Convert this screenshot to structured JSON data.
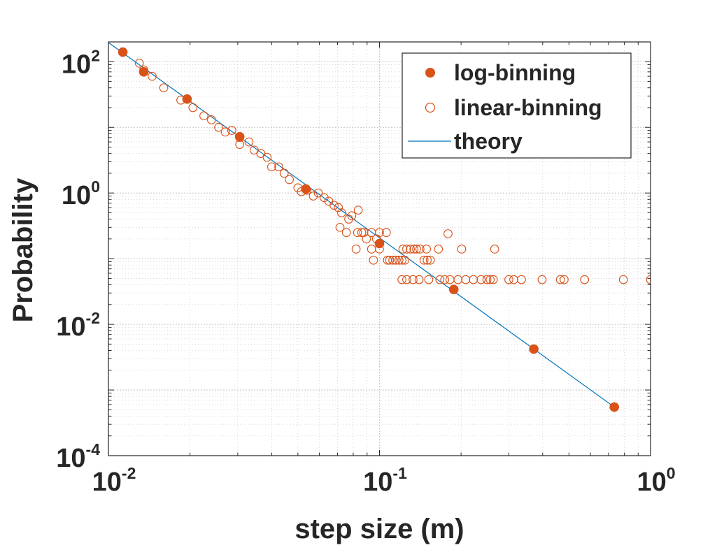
{
  "chart_data": {
    "type": "scatter",
    "xscale": "log",
    "yscale": "log",
    "xlim": [
      0.01,
      1
    ],
    "ylim": [
      0.0001,
      200
    ],
    "grid": true,
    "xlabel": "step size (m)",
    "ylabel": "Probability",
    "legend_position": "top-right",
    "x_ticks": [
      {
        "base": "10",
        "exp": "-2",
        "value": 0.01
      },
      {
        "base": "10",
        "exp": "-1",
        "value": 0.1
      },
      {
        "base": "10",
        "exp": "0",
        "value": 1
      }
    ],
    "y_ticks": [
      {
        "base": "10",
        "exp": "2",
        "value": 100
      },
      {
        "base": "10",
        "exp": "0",
        "value": 1
      },
      {
        "base": "10",
        "exp": "-2",
        "value": 0.01
      },
      {
        "base": "10",
        "exp": "-4",
        "value": 0.0001
      }
    ],
    "colors": {
      "markers": "#D95319",
      "theory": "#0072BD",
      "grid": "#b0b0b0",
      "axes": "#262626"
    },
    "series": [
      {
        "name": "log-binning",
        "style": "filled-circle",
        "points": [
          [
            0.0113,
            140
          ],
          [
            0.0135,
            70
          ],
          [
            0.0195,
            27
          ],
          [
            0.0305,
            7.2
          ],
          [
            0.0535,
            1.15
          ],
          [
            0.1,
            0.17
          ],
          [
            0.188,
            0.034
          ],
          [
            0.371,
            0.0042
          ],
          [
            0.735,
            0.00055
          ]
        ]
      },
      {
        "name": "linear-binning",
        "style": "open-circle",
        "points": [
          [
            0.0113,
            140
          ],
          [
            0.013,
            95
          ],
          [
            0.0135,
            75
          ],
          [
            0.0145,
            60
          ],
          [
            0.016,
            40
          ],
          [
            0.0185,
            26
          ],
          [
            0.0195,
            27
          ],
          [
            0.0205,
            20
          ],
          [
            0.0225,
            15
          ],
          [
            0.024,
            13
          ],
          [
            0.0255,
            10
          ],
          [
            0.027,
            8.5
          ],
          [
            0.0285,
            9
          ],
          [
            0.0305,
            7
          ],
          [
            0.0305,
            5.5
          ],
          [
            0.033,
            6
          ],
          [
            0.0345,
            4.5
          ],
          [
            0.0365,
            4
          ],
          [
            0.0385,
            3.5
          ],
          [
            0.04,
            2.5
          ],
          [
            0.0425,
            2.5
          ],
          [
            0.0445,
            2
          ],
          [
            0.0465,
            1.6
          ],
          [
            0.05,
            1.2
          ],
          [
            0.0515,
            1.05
          ],
          [
            0.054,
            1.1
          ],
          [
            0.057,
            0.9
          ],
          [
            0.0595,
            1.0
          ],
          [
            0.0625,
            0.85
          ],
          [
            0.065,
            0.75
          ],
          [
            0.068,
            0.65
          ],
          [
            0.0705,
            0.6
          ],
          [
            0.0725,
            0.5
          ],
          [
            0.077,
            0.4
          ],
          [
            0.079,
            0.45
          ],
          [
            0.0835,
            0.55
          ],
          [
            0.0715,
            0.3
          ],
          [
            0.0755,
            0.25
          ],
          [
            0.083,
            0.25
          ],
          [
            0.086,
            0.25
          ],
          [
            0.0875,
            0.25
          ],
          [
            0.0895,
            0.2
          ],
          [
            0.0935,
            0.25
          ],
          [
            0.0975,
            0.2
          ],
          [
            0.1,
            0.25
          ],
          [
            0.106,
            0.25
          ],
          [
            0.082,
            0.14
          ],
          [
            0.0935,
            0.14
          ],
          [
            0.1,
            0.14
          ],
          [
            0.095,
            0.095
          ],
          [
            0.107,
            0.095
          ],
          [
            0.109,
            0.095
          ],
          [
            0.112,
            0.095
          ],
          [
            0.115,
            0.095
          ],
          [
            0.118,
            0.095
          ],
          [
            0.121,
            0.095
          ],
          [
            0.124,
            0.095
          ],
          [
            0.122,
            0.14
          ],
          [
            0.126,
            0.14
          ],
          [
            0.13,
            0.14
          ],
          [
            0.134,
            0.14
          ],
          [
            0.137,
            0.14
          ],
          [
            0.141,
            0.14
          ],
          [
            0.146,
            0.095
          ],
          [
            0.15,
            0.095
          ],
          [
            0.154,
            0.095
          ],
          [
            0.149,
            0.14
          ],
          [
            0.165,
            0.14
          ],
          [
            0.179,
            0.24
          ],
          [
            0.201,
            0.14
          ],
          [
            0.266,
            0.14
          ],
          [
            0.121,
            0.048
          ],
          [
            0.126,
            0.048
          ],
          [
            0.133,
            0.048
          ],
          [
            0.14,
            0.048
          ],
          [
            0.152,
            0.048
          ],
          [
            0.167,
            0.048
          ],
          [
            0.174,
            0.048
          ],
          [
            0.182,
            0.048
          ],
          [
            0.195,
            0.048
          ],
          [
            0.208,
            0.048
          ],
          [
            0.222,
            0.048
          ],
          [
            0.237,
            0.048
          ],
          [
            0.249,
            0.048
          ],
          [
            0.256,
            0.048
          ],
          [
            0.263,
            0.048
          ],
          [
            0.3,
            0.048
          ],
          [
            0.313,
            0.048
          ],
          [
            0.334,
            0.048
          ],
          [
            0.398,
            0.048
          ],
          [
            0.465,
            0.048
          ],
          [
            0.48,
            0.048
          ],
          [
            0.571,
            0.048
          ],
          [
            0.794,
            0.048
          ],
          [
            1.0,
            0.048
          ]
        ]
      },
      {
        "name": "theory",
        "style": "line",
        "points": [
          [
            0.01,
            196
          ],
          [
            0.735,
            0.00055
          ]
        ]
      }
    ]
  }
}
